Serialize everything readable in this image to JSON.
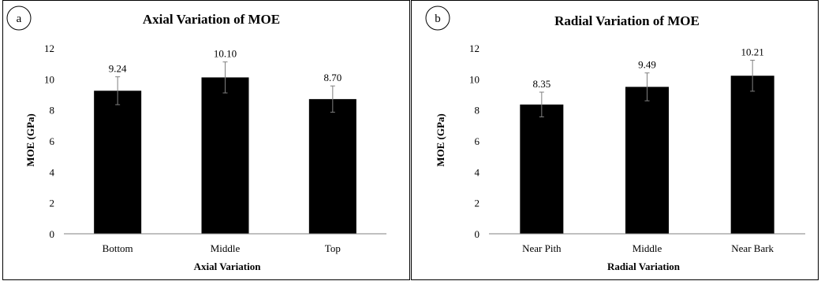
{
  "chart_data": [
    {
      "panel_label": "a",
      "type": "bar",
      "title": "Axial Variation of MOE",
      "xlabel": "Axial Variation",
      "ylabel": "MOE (GPa)",
      "ylim": [
        0,
        12
      ],
      "yticks": [
        0,
        2,
        4,
        6,
        8,
        10,
        12
      ],
      "categories": [
        "Bottom",
        "Middle",
        "Top"
      ],
      "values": [
        9.24,
        10.1,
        8.7
      ],
      "value_labels": [
        "9.24",
        "10.10",
        "8.70"
      ],
      "error": [
        0.9,
        1.0,
        0.85
      ],
      "grid": false,
      "legend": "none",
      "bar_color": "#000000",
      "error_color": "#808080"
    },
    {
      "panel_label": "b",
      "type": "bar",
      "title": "Radial Variation of MOE",
      "xlabel": "Radial Variation",
      "ylabel": "MOE (GPa)",
      "ylim": [
        0,
        12
      ],
      "yticks": [
        0,
        2,
        4,
        6,
        8,
        10,
        12
      ],
      "categories": [
        "Near Pith",
        "Middle",
        "Near Bark"
      ],
      "values": [
        8.35,
        9.49,
        10.21
      ],
      "value_labels": [
        "8.35",
        "9.49",
        "10.21"
      ],
      "error": [
        0.8,
        0.9,
        1.0
      ],
      "grid": false,
      "legend": "none",
      "bar_color": "#000000",
      "error_color": "#808080"
    }
  ]
}
